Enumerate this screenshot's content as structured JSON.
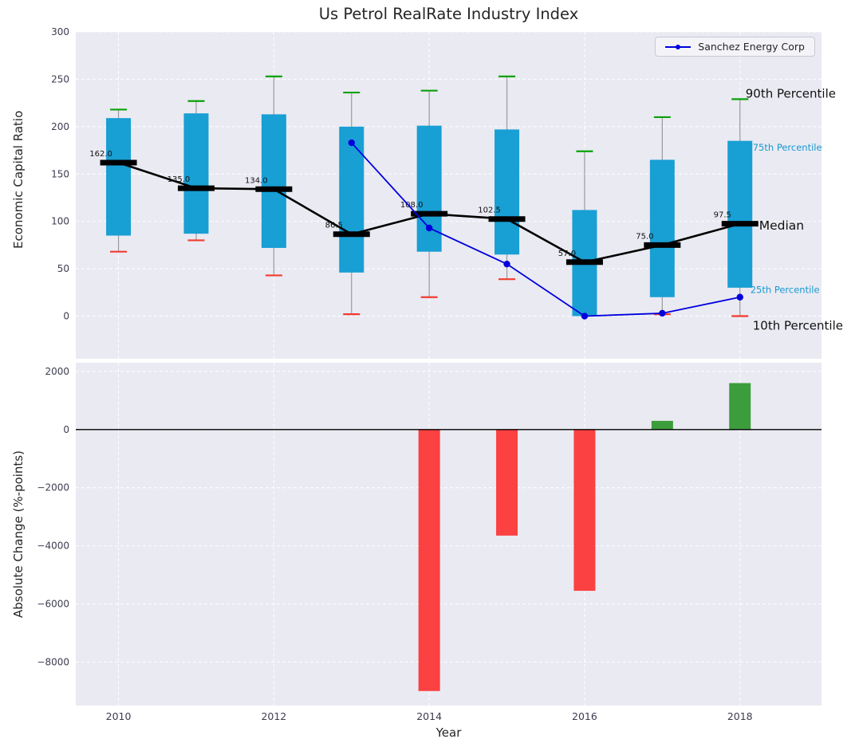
{
  "colors": {
    "panel": "#eaeaf2",
    "grid": "#ffffff",
    "box": "#189fd4",
    "whisker": "#9a9a9a",
    "cap_high": "#0aa20a",
    "cap_low": "#f23b2e",
    "median": "#000000",
    "series": "#0000dd",
    "bar_negative": "#fb4141",
    "bar_positive": "#3c9d3c",
    "tick": "#3c3c50",
    "text": "#262626",
    "accent": "#1799d1",
    "zero_line": "#000000"
  },
  "chart_data": [
    {
      "type": "boxplot",
      "title": "Us Petrol RealRate Industry Index",
      "ylabel": "Economic Capital Ratio",
      "ylim": [
        -45,
        300
      ],
      "xlim": [
        2009.45,
        2019.05
      ],
      "yticks": [
        0,
        50,
        100,
        150,
        200,
        250,
        300
      ],
      "grid_x": [
        2010,
        2012,
        2014,
        2016,
        2018
      ],
      "boxes": [
        {
          "year": 2010,
          "p10": 68,
          "q1": 85,
          "median": 162,
          "q3": 209,
          "p90": 218,
          "label": "162.0"
        },
        {
          "year": 2011,
          "p10": 80,
          "q1": 87,
          "median": 135,
          "q3": 214,
          "p90": 227,
          "label": "135.0"
        },
        {
          "year": 2012,
          "p10": 43,
          "q1": 72,
          "median": 134,
          "q3": 213,
          "p90": 253,
          "label": "134.0"
        },
        {
          "year": 2013,
          "p10": 2,
          "q1": 46,
          "median": 86.5,
          "q3": 200,
          "p90": 236,
          "label": "86.5"
        },
        {
          "year": 2014,
          "p10": 20,
          "q1": 68,
          "median": 108,
          "q3": 201,
          "p90": 238,
          "label": "108.0"
        },
        {
          "year": 2015,
          "p10": 39,
          "q1": 65,
          "median": 102.5,
          "q3": 197,
          "p90": 253,
          "label": "102.5"
        },
        {
          "year": 2016,
          "p10": 0,
          "q1": 0,
          "median": 57,
          "q3": 112,
          "p90": 174,
          "label": "57.0"
        },
        {
          "year": 2017,
          "p10": 2,
          "q1": 20,
          "median": 75,
          "q3": 165,
          "p90": 210,
          "label": "75.0"
        },
        {
          "year": 2018,
          "p10": 0,
          "q1": 30,
          "median": 97.5,
          "q3": 185,
          "p90": 229,
          "label": "97.5"
        }
      ],
      "series": [
        {
          "name": "Sanchez Energy Corp",
          "x": [
            2013,
            2014,
            2015,
            2016,
            2017,
            2018
          ],
          "y": [
            183,
            93,
            55,
            0,
            3,
            20
          ]
        }
      ],
      "annotations": [
        {
          "text": "90th Percentile",
          "value": 235,
          "dx": 7,
          "size": 15,
          "color": "black"
        },
        {
          "text": "75th Percentile",
          "value": 178,
          "dx": 16,
          "size": 11.5,
          "color": "accent"
        },
        {
          "text": "Median",
          "value": 96,
          "dx": 24,
          "size": 15.5,
          "color": "black"
        },
        {
          "text": "25th Percentile",
          "value": 28,
          "dx": 13,
          "size": 11.5,
          "color": "accent"
        },
        {
          "text": "10th Percentile",
          "value": -10,
          "dx": 16,
          "size": 15,
          "color": "black"
        }
      ]
    },
    {
      "type": "bar",
      "ylabel": "Absolute Change (%-points)",
      "xlabel": "Year",
      "ylim": [
        -9500,
        2300
      ],
      "yticks": [
        2000,
        0,
        -2000,
        -4000,
        -6000,
        -8000
      ],
      "ytick_labels": [
        "2000",
        "0",
        "−2000",
        "−4000",
        "−6000",
        "−8000"
      ],
      "xticks": [
        2010,
        2012,
        2014,
        2016,
        2018
      ],
      "bars": [
        {
          "year": 2014,
          "value": -9000
        },
        {
          "year": 2015,
          "value": -3650
        },
        {
          "year": 2016,
          "value": -5550
        },
        {
          "year": 2017,
          "value": 300
        },
        {
          "year": 2018,
          "value": 1600
        }
      ]
    }
  ]
}
